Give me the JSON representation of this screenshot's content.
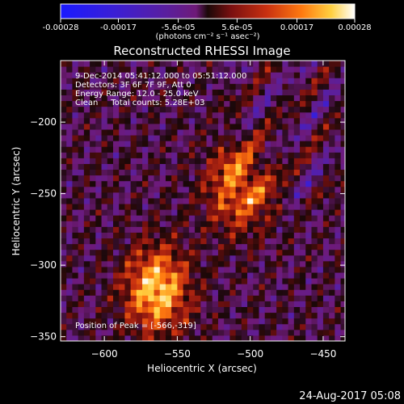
{
  "colorbar": {
    "tick_labels": [
      "-0.00028",
      "-0.00017",
      "-5.6e-05",
      "5.6e-05",
      "0.00017",
      "0.00028"
    ],
    "tick_values": [
      -0.00028,
      -0.00017,
      -5.6e-05,
      5.6e-05,
      0.00017,
      0.00028
    ],
    "range": [
      -0.00028,
      0.00028
    ],
    "units_label": "(photons cm⁻² s⁻¹ asec⁻²)"
  },
  "chart_data": {
    "type": "heatmap",
    "title": "Reconstructed RHESSI Image",
    "xlabel": "Heliocentric X (arcsec)",
    "ylabel": "Heliocentric Y (arcsec)",
    "xlim": [
      -630,
      -435
    ],
    "ylim": [
      -353,
      -157
    ],
    "x_ticks": [
      -600,
      -550,
      -500,
      -450
    ],
    "x_tick_labels": [
      "−600",
      "−550",
      "−500",
      "−450"
    ],
    "y_ticks": [
      -350,
      -300,
      -250,
      -200
    ],
    "y_tick_labels": [
      "−350",
      "−300",
      "−250",
      "−200"
    ],
    "colormap": [
      "#1a1aff",
      "#3a1fd6",
      "#5a1f9e",
      "#6e1a78",
      "#1a0808",
      "#7a1010",
      "#c83010",
      "#ff7a10",
      "#ffd040",
      "#ffffff"
    ],
    "sources": [
      {
        "x": -566,
        "y": -319,
        "peak": 0.00028
      },
      {
        "x": -510,
        "y": -248,
        "peak": 0.00022
      }
    ],
    "annotations": {
      "time": "9-Dec-2014 05:41:12.000 to 05:51:12.000",
      "detectors": "Detectors: 3F 6F 7F 9F, Att 0",
      "energy": "Energy Range: 12.0 - 25.0 keV",
      "method": "Clean     Total counts: 5.28E+03",
      "peak": "Position of Peak = [-566,-319]"
    }
  },
  "footer": {
    "timestamp": "24-Aug-2017 05:08"
  }
}
